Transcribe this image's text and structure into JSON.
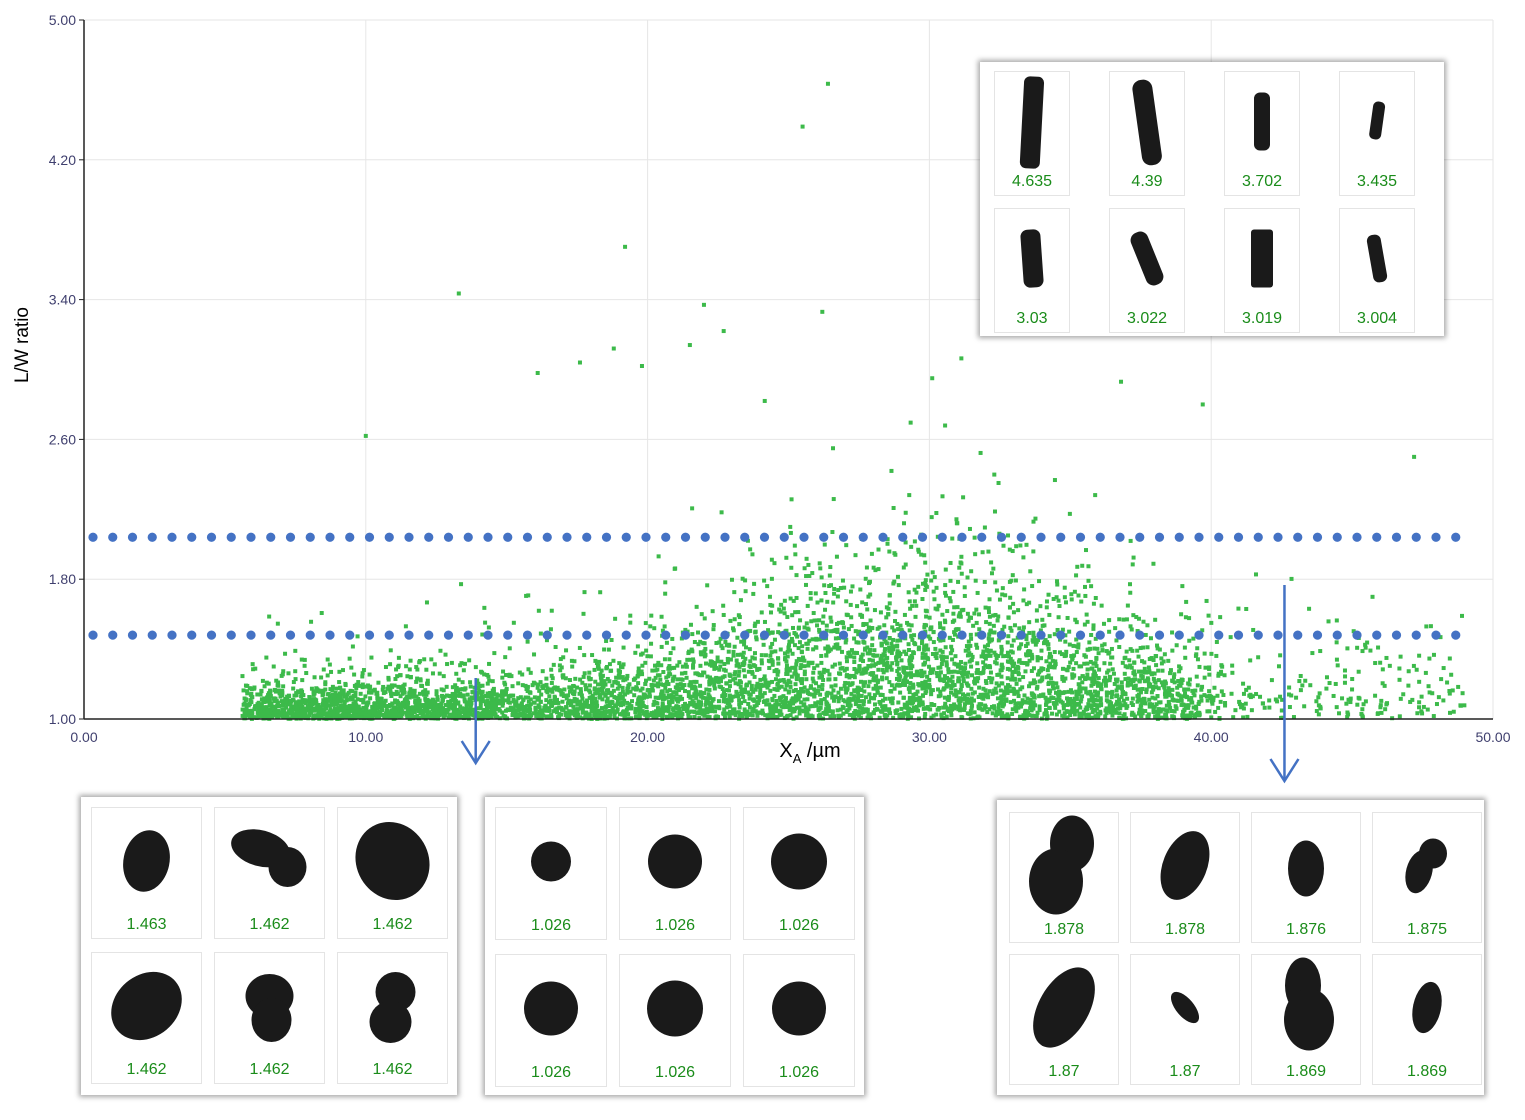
{
  "chart_data": {
    "type": "scatter",
    "xlabel_main": "X",
    "xlabel_sub": "A",
    "xlabel_unit": " /µm",
    "ylabel": "L/W ratio",
    "xlim": [
      0,
      50
    ],
    "ylim": [
      1.0,
      5.0
    ],
    "x_ticks": [
      "0.00",
      "10.00",
      "20.00",
      "30.00",
      "40.00",
      "50.00"
    ],
    "y_ticks": [
      "1.00",
      "1.80",
      "2.60",
      "3.40",
      "4.20",
      "5.00"
    ],
    "grid": true,
    "point_color": "#3cba4a",
    "threshold_lines": [
      2.04,
      1.48
    ],
    "threshold_color": "#4472c4",
    "arrows_x": [
      13.9,
      42.6
    ],
    "notable_points": [
      {
        "x": 26.4,
        "y": 4.635
      },
      {
        "x": 25.5,
        "y": 4.39
      },
      {
        "x": 19.2,
        "y": 3.702
      },
      {
        "x": 13.3,
        "y": 3.435
      },
      {
        "x": 22.0,
        "y": 3.37
      },
      {
        "x": 26.2,
        "y": 3.33
      },
      {
        "x": 22.7,
        "y": 3.22
      },
      {
        "x": 18.8,
        "y": 3.12
      },
      {
        "x": 21.5,
        "y": 3.14
      },
      {
        "x": 17.6,
        "y": 3.04
      },
      {
        "x": 16.1,
        "y": 2.98
      },
      {
        "x": 19.8,
        "y": 3.02
      },
      {
        "x": 30.1,
        "y": 2.95
      },
      {
        "x": 36.8,
        "y": 2.93
      },
      {
        "x": 10.0,
        "y": 2.62
      },
      {
        "x": 39.7,
        "y": 2.8
      },
      {
        "x": 47.2,
        "y": 2.5
      },
      {
        "x": 48.9,
        "y": 1.59
      }
    ],
    "series": [
      {
        "values_note": ""
      }
    ]
  },
  "panels": {
    "top_right": [
      "4.635",
      "4.39",
      "3.702",
      "3.435",
      "3.03",
      "3.022",
      "3.019",
      "3.004"
    ],
    "bottom_left": [
      "1.463",
      "1.462",
      "1.462",
      "1.462",
      "1.462",
      "1.462"
    ],
    "bottom_mid": [
      "1.026",
      "1.026",
      "1.026",
      "1.026",
      "1.026",
      "1.026"
    ],
    "bottom_right": [
      "1.878",
      "1.878",
      "1.876",
      "1.875",
      "1.87",
      "1.87",
      "1.869",
      "1.869"
    ]
  },
  "colors": {
    "value_text": "#1a8c1a",
    "axis_text": "#3f3f6e",
    "particle": "#1a1a1a"
  }
}
